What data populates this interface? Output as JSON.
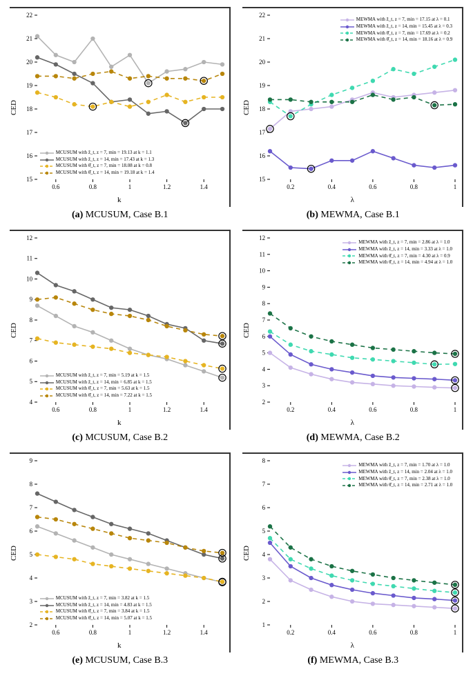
{
  "global": {
    "background_color": "#ffffff",
    "font_family": "Times New Roman",
    "tick_fontsize": 9,
    "label_fontsize": 11,
    "legend_fontsize": 7,
    "caption_fontsize": 14,
    "marker_radius": 3.2,
    "line_width": 1.6,
    "highlight_ring_color": "#000000",
    "highlight_ring_width": 1.2,
    "highlight_ring_radius": 5.2
  },
  "panels": [
    {
      "id": "a",
      "caption_tag": "(a)",
      "caption_text": "MCUSUM, Case B.1",
      "xlabel": "k",
      "ylabel": "CED",
      "xlim": [
        0.5,
        1.5
      ],
      "ylim": [
        15,
        22
      ],
      "xticks": [
        0.6,
        0.8,
        1.0,
        1.2,
        1.4
      ],
      "yticks": [
        15,
        16,
        17,
        18,
        19,
        20,
        21,
        22
      ],
      "legend_pos": "bottom-left",
      "series": [
        {
          "label": "MCUSUM with ẑ_t, z = 7,  min = 19.13 at k = 1.1",
          "color": "#b3b3b3",
          "dash": "solid",
          "x": [
            0.5,
            0.6,
            0.7,
            0.8,
            0.9,
            1.0,
            1.1,
            1.2,
            1.3,
            1.4,
            1.5
          ],
          "y": [
            21.1,
            20.3,
            20.0,
            21.0,
            19.8,
            20.3,
            19.1,
            19.6,
            19.7,
            20.0,
            19.9
          ],
          "highlight_x": 1.1
        },
        {
          "label": "MCUSUM with ẑ_t, z = 14, min = 17.43 at k = 1.3",
          "color": "#666666",
          "dash": "solid",
          "x": [
            0.5,
            0.6,
            0.7,
            0.8,
            0.9,
            1.0,
            1.1,
            1.2,
            1.3,
            1.4,
            1.5
          ],
          "y": [
            20.2,
            19.9,
            19.5,
            19.1,
            18.3,
            18.4,
            17.8,
            17.9,
            17.4,
            18.0,
            18.0
          ],
          "highlight_x": 1.3
        },
        {
          "label": "MCUSUM with θ̂_t, z = 7,  min  = 18.08 at k = 0.8",
          "color": "#e6b422",
          "dash": "dashed",
          "x": [
            0.5,
            0.6,
            0.7,
            0.8,
            0.9,
            1.0,
            1.1,
            1.2,
            1.3,
            1.4,
            1.5
          ],
          "y": [
            18.7,
            18.5,
            18.2,
            18.1,
            18.3,
            18.1,
            18.3,
            18.6,
            18.3,
            18.5,
            18.5
          ],
          "highlight_x": 0.8
        },
        {
          "label": "MCUSUM with θ̂_t, z = 14, min = 19.18 at k = 1.4",
          "color": "#b8860b",
          "dash": "dashed",
          "x": [
            0.5,
            0.6,
            0.7,
            0.8,
            0.9,
            1.0,
            1.1,
            1.2,
            1.3,
            1.4,
            1.5
          ],
          "y": [
            19.4,
            19.4,
            19.3,
            19.5,
            19.6,
            19.3,
            19.4,
            19.3,
            19.3,
            19.2,
            19.5
          ],
          "highlight_x": 1.4
        }
      ]
    },
    {
      "id": "b",
      "caption_tag": "(b)",
      "caption_text": "MEWMA, Case B.1",
      "xlabel": "λ",
      "ylabel": "CED",
      "xlim": [
        0.1,
        1.0
      ],
      "ylim": [
        15,
        22
      ],
      "xticks": [
        0.2,
        0.4,
        0.6,
        0.8,
        1.0
      ],
      "yticks": [
        15,
        16,
        17,
        18,
        19,
        20,
        21,
        22
      ],
      "legend_pos": "top-right",
      "series": [
        {
          "label": "MEWMA with ẑ_t, z = 7,  min = 17.15 at λ = 0.1",
          "color": "#c6b3e6",
          "dash": "solid",
          "x": [
            0.1,
            0.2,
            0.3,
            0.4,
            0.5,
            0.6,
            0.7,
            0.8,
            0.9,
            1.0
          ],
          "y": [
            17.15,
            17.9,
            18.0,
            18.1,
            18.4,
            18.7,
            18.5,
            18.6,
            18.7,
            18.8
          ],
          "highlight_x": 0.1
        },
        {
          "label": "MEWMA with ẑ_t, z = 14, min = 15.45 at λ = 0.3",
          "color": "#6a5acd",
          "dash": "solid",
          "x": [
            0.1,
            0.2,
            0.3,
            0.4,
            0.5,
            0.6,
            0.7,
            0.8,
            0.9,
            1.0
          ],
          "y": [
            16.2,
            15.5,
            15.45,
            15.8,
            15.8,
            16.2,
            15.9,
            15.6,
            15.5,
            15.6
          ],
          "highlight_x": 0.3
        },
        {
          "label": "MEWMA with θ̂_t, z = 7,  min = 17.69 at λ = 0.2",
          "color": "#3fd9b0",
          "dash": "dashed",
          "x": [
            0.1,
            0.2,
            0.3,
            0.4,
            0.5,
            0.6,
            0.7,
            0.8,
            0.9,
            1.0
          ],
          "y": [
            18.3,
            17.69,
            18.2,
            18.6,
            18.9,
            19.2,
            19.7,
            19.5,
            19.8,
            20.1
          ],
          "highlight_x": 0.2
        },
        {
          "label": "MEWMA with θ̂_t, z = 14, min = 18.16 at λ = 0.9",
          "color": "#1b7246",
          "dash": "dashed",
          "x": [
            0.1,
            0.2,
            0.3,
            0.4,
            0.5,
            0.6,
            0.7,
            0.8,
            0.9,
            1.0
          ],
          "y": [
            18.4,
            18.4,
            18.3,
            18.3,
            18.3,
            18.6,
            18.4,
            18.5,
            18.16,
            18.2
          ],
          "highlight_x": 0.9
        }
      ]
    },
    {
      "id": "c",
      "caption_tag": "(c)",
      "caption_text": "MCUSUM, Case B.2",
      "xlabel": "k",
      "ylabel": "CED",
      "xlim": [
        0.5,
        1.5
      ],
      "ylim": [
        4,
        12
      ],
      "xticks": [
        0.6,
        0.8,
        1.0,
        1.2,
        1.4
      ],
      "yticks": [
        4,
        5,
        6,
        7,
        8,
        9,
        10,
        11,
        12
      ],
      "legend_pos": "bottom-left",
      "series": [
        {
          "label": "MCUSUM with ẑ_t, z = 7,  min = 5.19 at k = 1.5",
          "color": "#b3b3b3",
          "dash": "solid",
          "x": [
            0.5,
            0.6,
            0.7,
            0.8,
            0.9,
            1.0,
            1.1,
            1.2,
            1.3,
            1.4,
            1.5
          ],
          "y": [
            8.7,
            8.2,
            7.7,
            7.4,
            7.0,
            6.6,
            6.3,
            6.1,
            5.8,
            5.5,
            5.19
          ],
          "highlight_x": 1.5
        },
        {
          "label": "MCUSUM with ẑ_t, z = 14, min = 6.85 at k = 1.5",
          "color": "#666666",
          "dash": "solid",
          "x": [
            0.5,
            0.6,
            0.7,
            0.8,
            0.9,
            1.0,
            1.1,
            1.2,
            1.3,
            1.4,
            1.5
          ],
          "y": [
            10.3,
            9.7,
            9.4,
            9.0,
            8.6,
            8.5,
            8.2,
            7.8,
            7.6,
            7.0,
            6.85
          ],
          "highlight_x": 1.5
        },
        {
          "label": "MCUSUM with θ̂_t, z = 7,  min = 5.63 at k = 1.5",
          "color": "#e6b422",
          "dash": "dashed",
          "x": [
            0.5,
            0.6,
            0.7,
            0.8,
            0.9,
            1.0,
            1.1,
            1.2,
            1.3,
            1.4,
            1.5
          ],
          "y": [
            7.1,
            6.9,
            6.8,
            6.7,
            6.6,
            6.4,
            6.3,
            6.2,
            6.0,
            5.8,
            5.63
          ],
          "highlight_x": 1.5
        },
        {
          "label": "MCUSUM with θ̂_t, z = 14, min = 7.22 at k = 1.5",
          "color": "#b8860b",
          "dash": "dashed",
          "x": [
            0.5,
            0.6,
            0.7,
            0.8,
            0.9,
            1.0,
            1.1,
            1.2,
            1.3,
            1.4,
            1.5
          ],
          "y": [
            9.0,
            9.1,
            8.8,
            8.5,
            8.3,
            8.2,
            8.0,
            7.7,
            7.5,
            7.3,
            7.22
          ],
          "highlight_x": 1.5
        }
      ]
    },
    {
      "id": "d",
      "caption_tag": "(d)",
      "caption_text": "MEWMA, Case B.2",
      "xlabel": "λ",
      "ylabel": "CED",
      "xlim": [
        0.1,
        1.0
      ],
      "ylim": [
        2,
        12
      ],
      "xticks": [
        0.2,
        0.4,
        0.6,
        0.8,
        1.0
      ],
      "yticks": [
        2,
        3,
        4,
        5,
        6,
        7,
        8,
        9,
        10,
        11,
        12
      ],
      "legend_pos": "top-right",
      "series": [
        {
          "label": "MEWMA with ẑ_t, z = 7,  min = 2.86 at λ = 1.0",
          "color": "#c6b3e6",
          "dash": "solid",
          "x": [
            0.1,
            0.2,
            0.3,
            0.4,
            0.5,
            0.6,
            0.7,
            0.8,
            0.9,
            1.0
          ],
          "y": [
            5.0,
            4.1,
            3.7,
            3.4,
            3.2,
            3.1,
            3.0,
            2.95,
            2.9,
            2.86
          ],
          "highlight_x": 1.0
        },
        {
          "label": "MEWMA with ẑ_t, z = 14, min = 3.33 at λ = 1.0",
          "color": "#6a5acd",
          "dash": "solid",
          "x": [
            0.1,
            0.2,
            0.3,
            0.4,
            0.5,
            0.6,
            0.7,
            0.8,
            0.9,
            1.0
          ],
          "y": [
            6.0,
            4.9,
            4.3,
            4.0,
            3.8,
            3.6,
            3.5,
            3.45,
            3.4,
            3.33
          ],
          "highlight_x": 1.0
        },
        {
          "label": "MEWMA with θ̂_t, z = 7,  min = 4.30 at λ = 0.9",
          "color": "#3fd9b0",
          "dash": "dashed",
          "x": [
            0.1,
            0.2,
            0.3,
            0.4,
            0.5,
            0.6,
            0.7,
            0.8,
            0.9,
            1.0
          ],
          "y": [
            6.3,
            5.5,
            5.1,
            4.9,
            4.7,
            4.6,
            4.5,
            4.4,
            4.3,
            4.32
          ],
          "highlight_x": 0.9
        },
        {
          "label": "MEWMA with θ̂_t, z = 14, min = 4.94 at λ = 1.0",
          "color": "#1b7246",
          "dash": "dashed",
          "x": [
            0.1,
            0.2,
            0.3,
            0.4,
            0.5,
            0.6,
            0.7,
            0.8,
            0.9,
            1.0
          ],
          "y": [
            7.4,
            6.5,
            6.0,
            5.7,
            5.5,
            5.3,
            5.2,
            5.1,
            5.0,
            4.94
          ],
          "highlight_x": 1.0
        }
      ]
    },
    {
      "id": "e",
      "caption_tag": "(e)",
      "caption_text": "MCUSUM, Case B.3",
      "xlabel": "k",
      "ylabel": "CED",
      "xlim": [
        0.5,
        1.5
      ],
      "ylim": [
        2,
        9
      ],
      "xticks": [
        0.6,
        0.8,
        1.0,
        1.2,
        1.4
      ],
      "yticks": [
        2,
        3,
        4,
        5,
        6,
        7,
        8,
        9
      ],
      "legend_pos": "bottom-left",
      "series": [
        {
          "label": "MCUSUM with ẑ_t, z = 7,  min = 3.82 at k = 1.5",
          "color": "#b3b3b3",
          "dash": "solid",
          "x": [
            0.5,
            0.6,
            0.7,
            0.8,
            0.9,
            1.0,
            1.1,
            1.2,
            1.3,
            1.4,
            1.5
          ],
          "y": [
            6.2,
            5.9,
            5.6,
            5.3,
            5.0,
            4.8,
            4.6,
            4.4,
            4.2,
            4.0,
            3.82
          ],
          "highlight_x": 1.5
        },
        {
          "label": "MCUSUM with ẑ_t, z = 14, min = 4.83 at k = 1.5",
          "color": "#666666",
          "dash": "solid",
          "x": [
            0.5,
            0.6,
            0.7,
            0.8,
            0.9,
            1.0,
            1.1,
            1.2,
            1.3,
            1.4,
            1.5
          ],
          "y": [
            7.6,
            7.25,
            6.9,
            6.6,
            6.3,
            6.1,
            5.9,
            5.6,
            5.3,
            5.0,
            4.83
          ],
          "highlight_x": 1.5
        },
        {
          "label": "MCUSUM with θ̂_t, z = 7,  min = 3.84 at k = 1.5",
          "color": "#e6b422",
          "dash": "dashed",
          "x": [
            0.5,
            0.6,
            0.7,
            0.8,
            0.9,
            1.0,
            1.1,
            1.2,
            1.3,
            1.4,
            1.5
          ],
          "y": [
            5.0,
            4.9,
            4.8,
            4.6,
            4.5,
            4.4,
            4.3,
            4.2,
            4.1,
            4.0,
            3.84
          ],
          "highlight_x": 1.5
        },
        {
          "label": "MCUSUM with θ̂_t, z = 14, min = 5.07 at k = 1.5",
          "color": "#b8860b",
          "dash": "dashed",
          "x": [
            0.5,
            0.6,
            0.7,
            0.8,
            0.9,
            1.0,
            1.1,
            1.2,
            1.3,
            1.4,
            1.5
          ],
          "y": [
            6.6,
            6.5,
            6.3,
            6.1,
            5.9,
            5.7,
            5.6,
            5.5,
            5.3,
            5.15,
            5.07
          ],
          "highlight_x": 1.5
        }
      ]
    },
    {
      "id": "f",
      "caption_tag": "(f)",
      "caption_text": "MEWMA, Case B.3",
      "xlabel": "λ",
      "ylabel": "CED",
      "xlim": [
        0.1,
        1.0
      ],
      "ylim": [
        1,
        8
      ],
      "xticks": [
        0.2,
        0.4,
        0.6,
        0.8,
        1.0
      ],
      "yticks": [
        1,
        2,
        3,
        4,
        5,
        6,
        7,
        8
      ],
      "legend_pos": "top-right",
      "series": [
        {
          "label": "MEWMA with ẑ_t, z = 7,  min = 1.70 at λ = 1.0",
          "color": "#c6b3e6",
          "dash": "solid",
          "x": [
            0.1,
            0.2,
            0.3,
            0.4,
            0.5,
            0.6,
            0.7,
            0.8,
            0.9,
            1.0
          ],
          "y": [
            3.8,
            2.9,
            2.5,
            2.2,
            2.0,
            1.9,
            1.85,
            1.8,
            1.75,
            1.7
          ],
          "highlight_x": 1.0
        },
        {
          "label": "MEWMA with ẑ_t, z = 14, min = 2.04 at λ = 1.0",
          "color": "#6a5acd",
          "dash": "solid",
          "x": [
            0.1,
            0.2,
            0.3,
            0.4,
            0.5,
            0.6,
            0.7,
            0.8,
            0.9,
            1.0
          ],
          "y": [
            4.5,
            3.5,
            3.0,
            2.7,
            2.5,
            2.35,
            2.25,
            2.15,
            2.1,
            2.04
          ],
          "highlight_x": 1.0
        },
        {
          "label": "MEWMA with θ̂_t, z = 7,  min = 2.38 at λ = 1.0",
          "color": "#3fd9b0",
          "dash": "dashed",
          "x": [
            0.1,
            0.2,
            0.3,
            0.4,
            0.5,
            0.6,
            0.7,
            0.8,
            0.9,
            1.0
          ],
          "y": [
            4.7,
            3.8,
            3.4,
            3.1,
            2.9,
            2.75,
            2.65,
            2.55,
            2.45,
            2.38
          ],
          "highlight_x": 1.0
        },
        {
          "label": "MEWMA with θ̂_t, z = 14, min = 2.71 at λ = 1.0",
          "color": "#1b7246",
          "dash": "dashed",
          "x": [
            0.1,
            0.2,
            0.3,
            0.4,
            0.5,
            0.6,
            0.7,
            0.8,
            0.9,
            1.0
          ],
          "y": [
            5.2,
            4.3,
            3.8,
            3.5,
            3.3,
            3.15,
            3.0,
            2.9,
            2.8,
            2.71
          ],
          "highlight_x": 1.0
        }
      ]
    }
  ]
}
